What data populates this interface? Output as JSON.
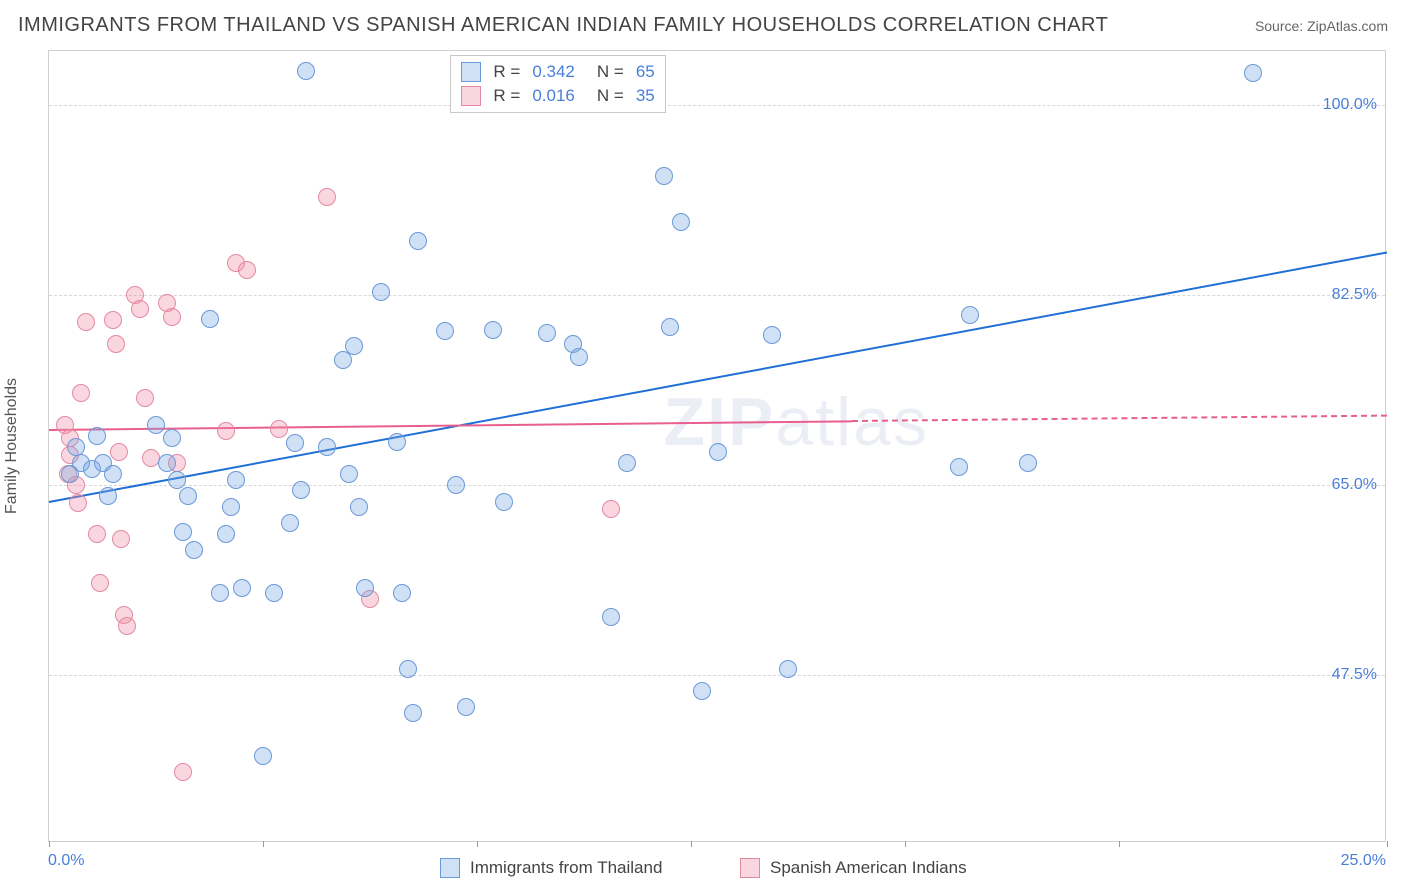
{
  "header": {
    "title": "IMMIGRANTS FROM THAILAND VS SPANISH AMERICAN INDIAN FAMILY HOUSEHOLDS CORRELATION CHART",
    "source_label": "Source: ",
    "source_value": "ZipAtlas.com"
  },
  "chart": {
    "type": "scatter",
    "y_axis_title": "Family Households",
    "xlim": [
      0,
      25
    ],
    "ylim": [
      32,
      105
    ],
    "x_tick_labels": [
      "0.0%",
      "25.0%"
    ],
    "y_ticks": [
      47.5,
      65.0,
      82.5,
      100.0
    ],
    "y_tick_labels": [
      "47.5%",
      "65.0%",
      "82.5%",
      "100.0%"
    ],
    "x_minor_ticks": [
      0,
      4,
      8,
      12,
      16,
      20,
      25
    ],
    "x_minor_ticks_pct": [
      0,
      16,
      32,
      48,
      64,
      80,
      100
    ],
    "background_color": "#ffffff",
    "grid_color": "#d8d8d8",
    "border_color": "#d0d0d0",
    "watermark_text_bold": "ZIP",
    "watermark_text_thin": "atlas",
    "series": {
      "blue": {
        "label": "Immigrants from Thailand",
        "fill": "rgba(120,165,225,0.35)",
        "stroke": "#6a9ad8",
        "trend_color": "#1f6fd4",
        "point_radius": 9,
        "R": "0.342",
        "N": "65",
        "trend": {
          "x1_pct": 0,
          "y1": 63.5,
          "x2_pct": 100,
          "y2": 86.5
        },
        "points": [
          {
            "x": 0.6,
            "y": 67
          },
          {
            "x": 0.8,
            "y": 66.5
          },
          {
            "x": 0.5,
            "y": 68.5
          },
          {
            "x": 1.0,
            "y": 67
          },
          {
            "x": 0.9,
            "y": 69.5
          },
          {
            "x": 1.2,
            "y": 66
          },
          {
            "x": 0.4,
            "y": 66
          },
          {
            "x": 1.1,
            "y": 64
          },
          {
            "x": 2.0,
            "y": 70.5
          },
          {
            "x": 2.3,
            "y": 69.3
          },
          {
            "x": 2.2,
            "y": 67
          },
          {
            "x": 2.4,
            "y": 65.5
          },
          {
            "x": 2.5,
            "y": 60.7
          },
          {
            "x": 2.6,
            "y": 64
          },
          {
            "x": 2.7,
            "y": 59
          },
          {
            "x": 3.0,
            "y": 80.3
          },
          {
            "x": 3.5,
            "y": 65.5
          },
          {
            "x": 3.4,
            "y": 63
          },
          {
            "x": 3.3,
            "y": 60.5
          },
          {
            "x": 3.6,
            "y": 55.5
          },
          {
            "x": 3.2,
            "y": 55
          },
          {
            "x": 4.0,
            "y": 40
          },
          {
            "x": 4.2,
            "y": 55
          },
          {
            "x": 4.5,
            "y": 61.5
          },
          {
            "x": 4.7,
            "y": 64.5
          },
          {
            "x": 4.6,
            "y": 68.9
          },
          {
            "x": 4.8,
            "y": 103.2
          },
          {
            "x": 5.2,
            "y": 68.5
          },
          {
            "x": 5.5,
            "y": 76.5
          },
          {
            "x": 5.6,
            "y": 66
          },
          {
            "x": 5.7,
            "y": 77.8
          },
          {
            "x": 5.8,
            "y": 63
          },
          {
            "x": 5.9,
            "y": 55.5
          },
          {
            "x": 6.2,
            "y": 82.8
          },
          {
            "x": 6.5,
            "y": 69
          },
          {
            "x": 6.6,
            "y": 55
          },
          {
            "x": 6.7,
            "y": 48
          },
          {
            "x": 6.8,
            "y": 44
          },
          {
            "x": 6.9,
            "y": 87.5
          },
          {
            "x": 7.4,
            "y": 79.2
          },
          {
            "x": 7.6,
            "y": 65
          },
          {
            "x": 7.8,
            "y": 44.5
          },
          {
            "x": 8.3,
            "y": 79.3
          },
          {
            "x": 8.5,
            "y": 63.4
          },
          {
            "x": 9.3,
            "y": 79
          },
          {
            "x": 9.8,
            "y": 78
          },
          {
            "x": 9.9,
            "y": 76.8
          },
          {
            "x": 10.5,
            "y": 52.8
          },
          {
            "x": 10.8,
            "y": 67
          },
          {
            "x": 11.5,
            "y": 93.5
          },
          {
            "x": 11.6,
            "y": 79.6
          },
          {
            "x": 11.8,
            "y": 89.2
          },
          {
            "x": 12.2,
            "y": 46
          },
          {
            "x": 12.5,
            "y": 68
          },
          {
            "x": 13.5,
            "y": 78.8
          },
          {
            "x": 13.8,
            "y": 48
          },
          {
            "x": 17.0,
            "y": 66.7
          },
          {
            "x": 17.2,
            "y": 80.7
          },
          {
            "x": 18.3,
            "y": 67
          },
          {
            "x": 22.5,
            "y": 103
          }
        ]
      },
      "pink": {
        "label": "Spanish American Indians",
        "fill": "rgba(240,140,165,0.35)",
        "stroke": "#e38aa2",
        "trend_color": "#e85f8f",
        "point_radius": 9,
        "R": "0.016",
        "N": "35",
        "trend_solid": {
          "x1_pct": 0,
          "y1": 70.2,
          "x2_pct": 60,
          "y2": 71.0
        },
        "trend_dash": {
          "x1_pct": 60,
          "y1": 71.0,
          "x2_pct": 100,
          "y2": 71.5
        },
        "points": [
          {
            "x": 0.3,
            "y": 70.5
          },
          {
            "x": 0.4,
            "y": 69.3
          },
          {
            "x": 0.4,
            "y": 67.8
          },
          {
            "x": 0.35,
            "y": 66
          },
          {
            "x": 0.5,
            "y": 65
          },
          {
            "x": 0.55,
            "y": 63.3
          },
          {
            "x": 0.6,
            "y": 73.5
          },
          {
            "x": 0.7,
            "y": 80
          },
          {
            "x": 0.9,
            "y": 60.5
          },
          {
            "x": 0.95,
            "y": 56
          },
          {
            "x": 1.2,
            "y": 80.2
          },
          {
            "x": 1.25,
            "y": 78
          },
          {
            "x": 1.3,
            "y": 68
          },
          {
            "x": 1.35,
            "y": 60
          },
          {
            "x": 1.4,
            "y": 53
          },
          {
            "x": 1.45,
            "y": 52
          },
          {
            "x": 1.6,
            "y": 82.5
          },
          {
            "x": 1.7,
            "y": 81.2
          },
          {
            "x": 1.8,
            "y": 73
          },
          {
            "x": 1.9,
            "y": 67.5
          },
          {
            "x": 2.2,
            "y": 81.8
          },
          {
            "x": 2.3,
            "y": 80.5
          },
          {
            "x": 2.4,
            "y": 67
          },
          {
            "x": 2.5,
            "y": 38.5
          },
          {
            "x": 3.3,
            "y": 70
          },
          {
            "x": 3.5,
            "y": 85.5
          },
          {
            "x": 3.7,
            "y": 84.8
          },
          {
            "x": 4.3,
            "y": 70.2
          },
          {
            "x": 5.2,
            "y": 91.5
          },
          {
            "x": 6.0,
            "y": 54.5
          },
          {
            "x": 10.5,
            "y": 62.8
          }
        ]
      }
    }
  },
  "legend_top": {
    "R_label": "R =",
    "N_label": "N ="
  },
  "legend_bottom": {
    "items": [
      {
        "key": "blue"
      },
      {
        "key": "pink"
      }
    ]
  },
  "colors": {
    "stat_link": "#4a7fd8",
    "stat_text": "#444444"
  }
}
